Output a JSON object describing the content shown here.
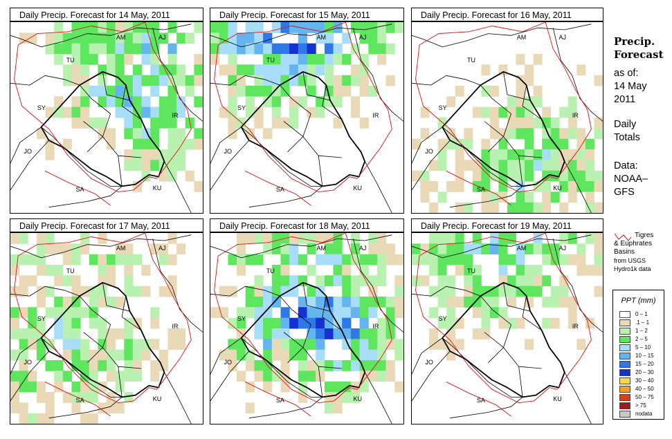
{
  "panels": [
    {
      "title": "Daily Precip. Forecast for  14 May, 2011",
      "intensity": "moderate",
      "focus": "north-east"
    },
    {
      "title": "Daily Precip. Forecast for  15 May, 2011",
      "intensity": "moderate",
      "focus": "north"
    },
    {
      "title": "Daily Precip. Forecast for  16 May, 2011",
      "intensity": "light",
      "focus": "south"
    },
    {
      "title": "Daily Precip. Forecast for  17 May, 2011",
      "intensity": "light",
      "focus": "west"
    },
    {
      "title": "Daily Precip. Forecast for  18 May, 2011",
      "intensity": "heavy",
      "focus": "central"
    },
    {
      "title": "Daily Precip. Forecast for  19 May, 2011",
      "intensity": "light",
      "focus": "north"
    }
  ],
  "map_labels": {
    "am": "AM",
    "aj": "AJ",
    "tu": "TU",
    "sy": "SY",
    "ir": "IR",
    "jo": "JO",
    "sa": "SA",
    "ku": "KU"
  },
  "sidebar": {
    "title_line1": "Precip.",
    "title_line2": "Forecast",
    "asof": "as of:",
    "date_line1": "14 May",
    "date_line2": "2011",
    "totals_line1": "Daily",
    "totals_line2": "Totals",
    "data_line1": "Data:",
    "data_line2": "NOAA–",
    "data_line3": "GFS"
  },
  "basins_legend": {
    "line1": "Tigres",
    "line2": "& Euphrates",
    "line3": "Basins",
    "line4": "from USGS",
    "line5": "Hydro1k data"
  },
  "ppt_legend": {
    "title": "PPT (mm)",
    "items": [
      {
        "label": "0 – 1",
        "color": "#ffffff"
      },
      {
        "label": ".1 – 1",
        "color": "#ead9b6"
      },
      {
        "label": "1 – 2",
        "color": "#b9f2b0"
      },
      {
        "label": "2 – 5",
        "color": "#5fe65f"
      },
      {
        "label": "5 – 10",
        "color": "#a8ddf8"
      },
      {
        "label": "10 – 15",
        "color": "#64b4f0"
      },
      {
        "label": "15 – 20",
        "color": "#2f78e8"
      },
      {
        "label": "20 – 30",
        "color": "#1432d2"
      },
      {
        "label": "30 – 40",
        "color": "#f7d84a"
      },
      {
        "label": "40 – 50",
        "color": "#f5a020"
      },
      {
        "label": "50 – 75",
        "color": "#e23c14"
      },
      {
        "label": "> 75",
        "color": "#9a1e1e"
      },
      {
        "label": "nodata",
        "color": "#c8c8c8"
      }
    ]
  },
  "colors": {
    "basin_line": "#dd1111",
    "border": "#000000"
  }
}
